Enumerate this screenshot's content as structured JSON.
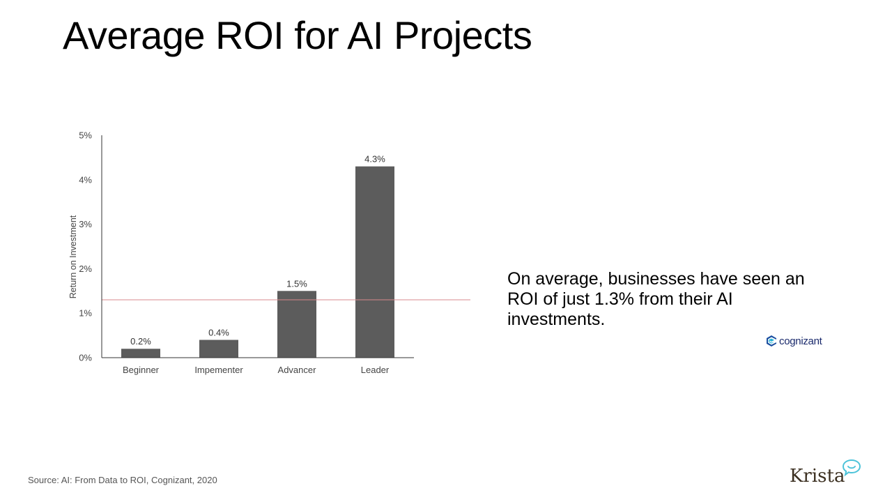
{
  "slide": {
    "title": "Average ROI for AI Projects",
    "callout": "On average, businesses have seen an ROI of just 1.3% from their AI investments.",
    "source": "Source: AI: From Data to ROI, Cognizant, 2020",
    "cognizant_logo_text": "cognizant",
    "krista_logo_text": "Krista"
  },
  "colors": {
    "bar": "#5c5c5c",
    "average_line": "#d9888c",
    "axis": "#333333",
    "tick_text": "#444444"
  },
  "chart_data": {
    "type": "bar",
    "title": "",
    "xlabel": "",
    "ylabel": "Return on Investment",
    "categories": [
      "Beginner",
      "Impementer",
      "Advancer",
      "Leader"
    ],
    "values": [
      0.2,
      0.4,
      1.5,
      4.3
    ],
    "value_labels": [
      "0.2%",
      "0.4%",
      "1.5%",
      "4.3%"
    ],
    "ylim": [
      0,
      5
    ],
    "yticks": [
      0,
      1,
      2,
      3,
      4,
      5
    ],
    "ytick_labels": [
      "0%",
      "1%",
      "2%",
      "3%",
      "4%",
      "5%"
    ],
    "reference_line": 1.3,
    "grid": false,
    "legend": "none"
  }
}
